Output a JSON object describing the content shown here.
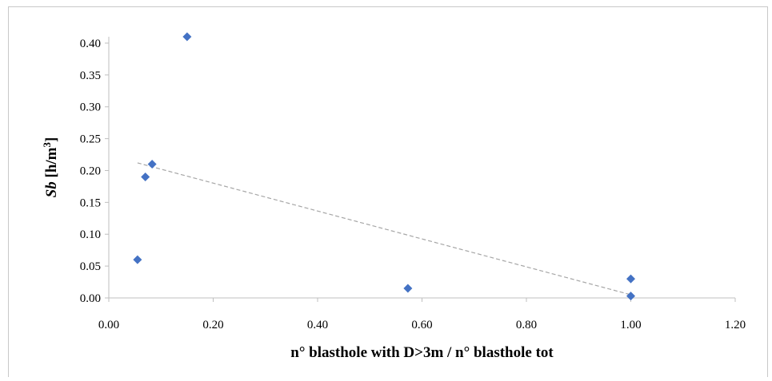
{
  "chart_data": {
    "type": "scatter",
    "title": "",
    "xlabel": "n° blasthole with D>3m / n° blasthole tot",
    "ylabel": {
      "italic": "Sb",
      "normal": " [h/m",
      "sup": "3",
      "end": "]"
    },
    "xlim": [
      0,
      1.2
    ],
    "ylim": [
      0,
      0.42
    ],
    "xticks": [
      "0.00",
      "0.20",
      "0.40",
      "0.60",
      "0.80",
      "1.00",
      "1.20"
    ],
    "xtick_values": [
      0,
      0.2,
      0.4,
      0.6,
      0.8,
      1.0,
      1.2
    ],
    "yticks": [
      "0.00",
      "0.05",
      "0.10",
      "0.15",
      "0.20",
      "0.25",
      "0.30",
      "0.35",
      "0.40"
    ],
    "ytick_values": [
      0,
      0.05,
      0.1,
      0.15,
      0.2,
      0.25,
      0.3,
      0.35,
      0.4
    ],
    "grid": false,
    "legend": "none",
    "series": [
      {
        "marker": "diamond",
        "color": "#4472C4",
        "points": [
          {
            "x": 0.15,
            "y": 0.41
          },
          {
            "x": 0.083,
            "y": 0.21
          },
          {
            "x": 0.07,
            "y": 0.19
          },
          {
            "x": 0.055,
            "y": 0.06
          },
          {
            "x": 0.573,
            "y": 0.015
          },
          {
            "x": 1.0,
            "y": 0.03
          },
          {
            "x": 1.0,
            "y": 0.003
          }
        ]
      }
    ],
    "trendline": {
      "style": "dashed",
      "color": "#A6A6A6",
      "start": {
        "x": 0.055,
        "y": 0.212
      },
      "end": {
        "x": 1.0,
        "y": 0.005
      }
    }
  }
}
